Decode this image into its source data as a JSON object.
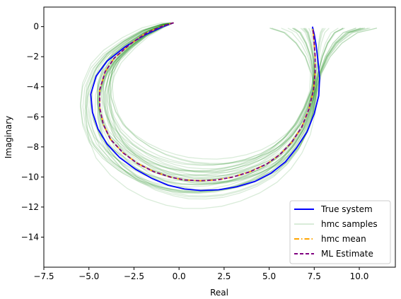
{
  "chart_data": {
    "type": "line",
    "title": "",
    "xlabel": "Real",
    "ylabel": "Imaginary",
    "xlim": [
      -7.5,
      12.0
    ],
    "ylim": [
      -16.0,
      1.3
    ],
    "xticks": [
      -7.5,
      -5.0,
      -2.5,
      0.0,
      2.5,
      5.0,
      7.5,
      10.0
    ],
    "xtick_labels": [
      "−7.5",
      "−5.0",
      "−2.5",
      "0.0",
      "2.5",
      "5.0",
      "7.5",
      "10.0"
    ],
    "yticks": [
      0,
      -2,
      -4,
      -6,
      -8,
      -10,
      -12,
      -14
    ],
    "ytick_labels": [
      "0",
      "−2",
      "−4",
      "−6",
      "−8",
      "−10",
      "−12",
      "−14"
    ],
    "grid": false,
    "legend_position": "lower-right",
    "series": [
      {
        "name": "True system",
        "color": "#0000ff",
        "style": "solid",
        "x": [
          -0.3,
          -0.9,
          -1.9,
          -3.0,
          -4.0,
          -4.6,
          -4.9,
          -4.8,
          -4.5,
          -4.0,
          -3.3,
          -2.4,
          -1.5,
          -0.6,
          0.3,
          1.2,
          2.2,
          3.2,
          4.2,
          5.1,
          5.9,
          6.5,
          7.1,
          7.5,
          7.75,
          7.8,
          7.7,
          7.6,
          7.5,
          7.4
        ],
        "y": [
          0.25,
          0.0,
          -0.55,
          -1.35,
          -2.3,
          -3.3,
          -4.5,
          -5.7,
          -6.8,
          -7.8,
          -8.7,
          -9.5,
          -10.1,
          -10.55,
          -10.8,
          -10.9,
          -10.85,
          -10.65,
          -10.3,
          -9.75,
          -9.0,
          -8.1,
          -7.0,
          -5.8,
          -4.6,
          -3.4,
          -2.2,
          -1.2,
          -0.5,
          0.0
        ]
      },
      {
        "name": "hmc samples",
        "color": "#008000",
        "style": "solid",
        "alpha": 0.15,
        "count": 40
      },
      {
        "name": "hmc mean",
        "color": "#ffa500",
        "style": "dashdot",
        "x": [
          -0.3,
          -0.9,
          -1.85,
          -2.75,
          -3.6,
          -4.1,
          -4.4,
          -4.4,
          -4.2,
          -3.8,
          -3.1,
          -2.3,
          -1.4,
          -0.5,
          0.3,
          1.2,
          2.1,
          3.0,
          3.95,
          4.85,
          5.6,
          6.25,
          6.8,
          7.2,
          7.45,
          7.55,
          7.55,
          7.5,
          7.45,
          7.4
        ],
        "y": [
          0.25,
          0.05,
          -0.45,
          -1.2,
          -2.1,
          -3.0,
          -4.2,
          -5.4,
          -6.5,
          -7.5,
          -8.4,
          -9.1,
          -9.65,
          -10.0,
          -10.2,
          -10.25,
          -10.2,
          -10.0,
          -9.65,
          -9.15,
          -8.5,
          -7.7,
          -6.7,
          -5.5,
          -4.3,
          -3.1,
          -2.0,
          -1.1,
          -0.4,
          -0.1
        ]
      },
      {
        "name": "ML Estimate",
        "color": "#800080",
        "style": "dashed",
        "x": [
          -0.3,
          -0.9,
          -1.85,
          -2.75,
          -3.6,
          -4.1,
          -4.4,
          -4.4,
          -4.2,
          -3.8,
          -3.1,
          -2.3,
          -1.4,
          -0.5,
          0.3,
          1.2,
          2.1,
          3.0,
          3.95,
          4.85,
          5.6,
          6.25,
          6.8,
          7.2,
          7.45,
          7.55,
          7.55,
          7.5,
          7.45,
          7.4
        ],
        "y": [
          0.25,
          0.05,
          -0.45,
          -1.2,
          -2.1,
          -3.0,
          -4.2,
          -5.4,
          -6.5,
          -7.5,
          -8.4,
          -9.1,
          -9.65,
          -10.0,
          -10.2,
          -10.25,
          -10.2,
          -10.0,
          -9.65,
          -9.15,
          -8.5,
          -7.7,
          -6.7,
          -5.5,
          -4.3,
          -3.1,
          -2.0,
          -1.1,
          -0.4,
          -0.1
        ]
      }
    ]
  }
}
